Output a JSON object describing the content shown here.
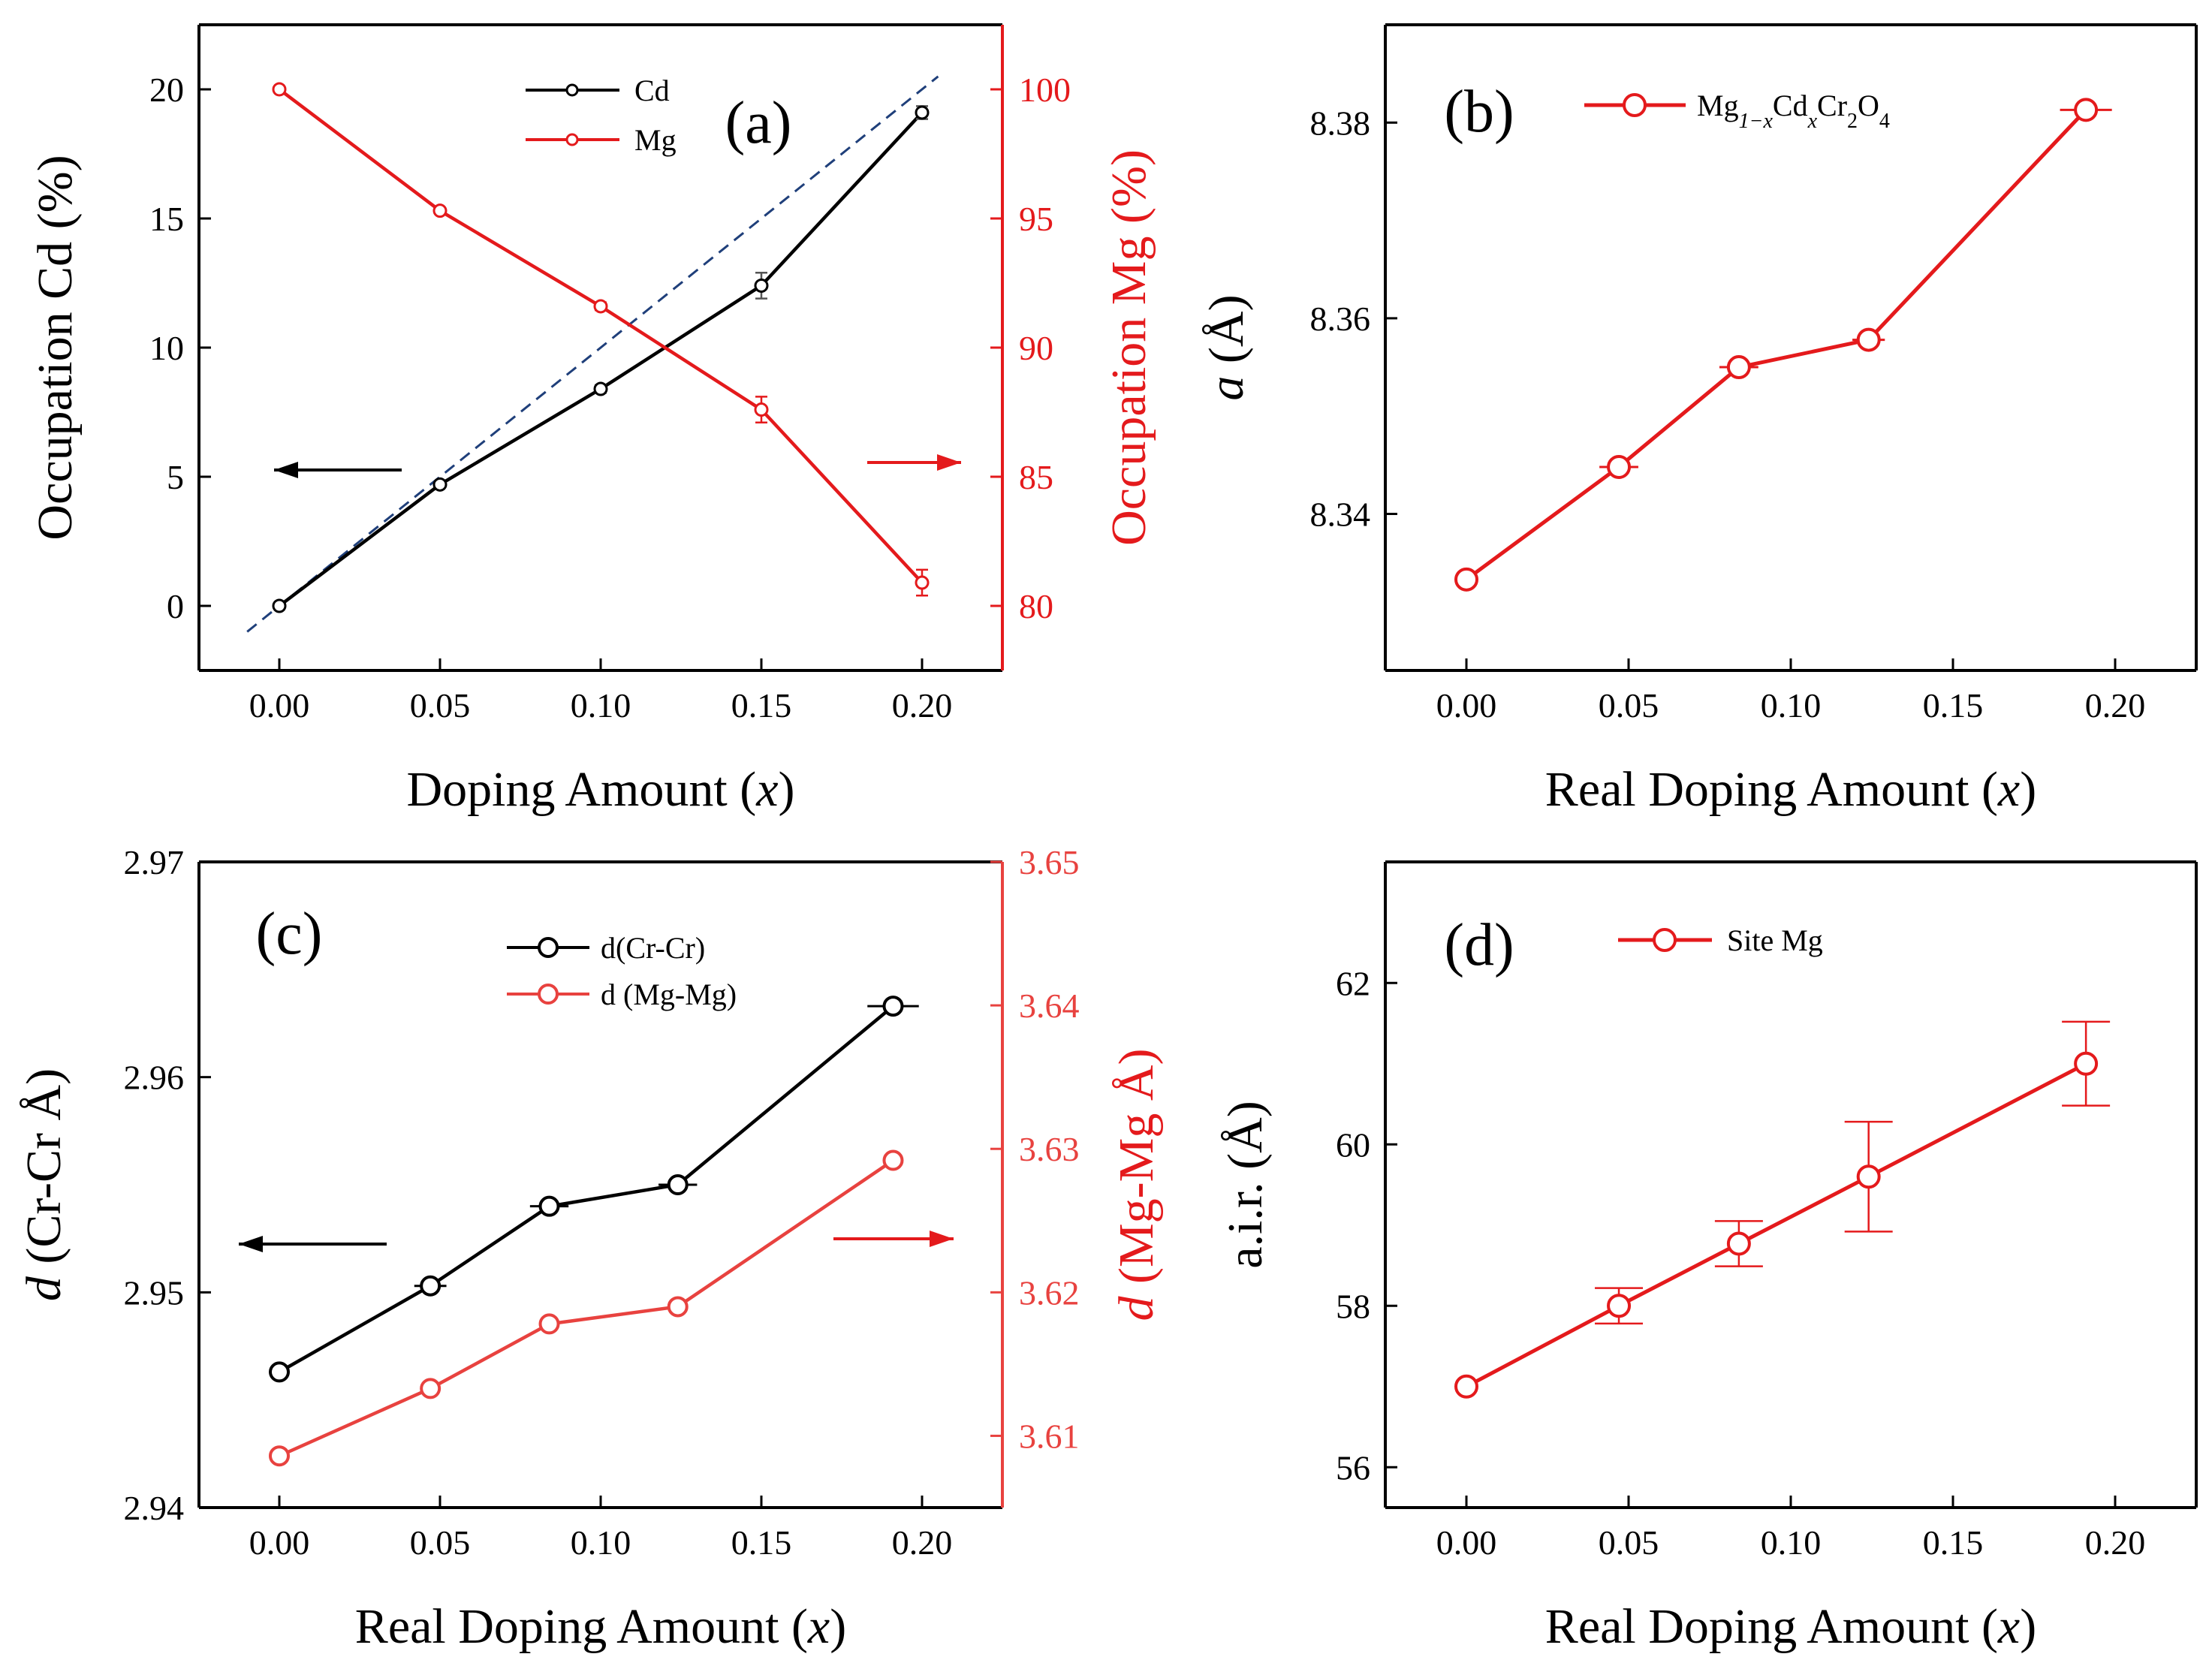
{
  "chart_data": [
    {
      "id": "a",
      "type": "line",
      "panel_label": "(a)",
      "xlabel": "Doping Amount (",
      "xlabel_var": "x",
      "xlabel_end": ")",
      "ylabel_left": "Occupation Cd (%)",
      "ylabel_right": "Occupation Mg (%)",
      "xlim": [
        -0.025,
        0.225
      ],
      "ylim_left": [
        -2.5,
        22.5
      ],
      "ylim_right": [
        77.5,
        102.5
      ],
      "x_ticks": [
        0.0,
        0.05,
        0.1,
        0.15,
        0.2
      ],
      "x_tick_labels": [
        "0.00",
        "0.05",
        "0.10",
        "0.15",
        "0.20"
      ],
      "y_left_ticks": [
        0,
        5,
        10,
        15,
        20
      ],
      "y_left_tick_labels": [
        "0",
        "5",
        "10",
        "15",
        "20"
      ],
      "y_right_ticks": [
        80,
        85,
        90,
        95,
        100
      ],
      "y_right_tick_labels": [
        "80",
        "85",
        "90",
        "95",
        "100"
      ],
      "reference_line": {
        "x": [
          -0.01,
          0.205
        ],
        "y": [
          -1.0,
          20.5
        ],
        "style": "dashed",
        "color": "#1f3f7a"
      },
      "series": [
        {
          "name": "Cd",
          "axis": "left",
          "color": "#000000",
          "marker": "circle-open",
          "x": [
            0.0,
            0.05,
            0.1,
            0.15,
            0.2
          ],
          "y": [
            0.0,
            4.7,
            8.4,
            12.4,
            19.1
          ],
          "yerr": [
            0.0,
            0.1,
            0.15,
            0.5,
            0.25
          ]
        },
        {
          "name": "Mg",
          "axis": "right",
          "color": "#e41a1c",
          "marker": "circle-open",
          "x": [
            0.0,
            0.05,
            0.1,
            0.15,
            0.2
          ],
          "y": [
            100.0,
            95.3,
            91.6,
            87.6,
            80.9
          ],
          "yerr": [
            0.0,
            0.1,
            0.15,
            0.5,
            0.5
          ]
        }
      ],
      "arrows": [
        {
          "direction": "left",
          "color": "#000000"
        },
        {
          "direction": "right",
          "color": "#e41a1c"
        }
      ]
    },
    {
      "id": "b",
      "type": "line",
      "panel_label": "(b)",
      "xlabel": "Real Doping Amount (",
      "xlabel_var": "x",
      "xlabel_end": ")",
      "ylabel_var": "a",
      "ylabel_rest": "(Å)",
      "xlim": [
        -0.025,
        0.225
      ],
      "ylim": [
        8.324,
        8.39
      ],
      "x_ticks": [
        0.0,
        0.05,
        0.1,
        0.15,
        0.2
      ],
      "x_tick_labels": [
        "0.00",
        "0.05",
        "0.10",
        "0.15",
        "0.20"
      ],
      "y_ticks": [
        8.34,
        8.36,
        8.38
      ],
      "y_tick_labels": [
        "8.34",
        "8.36",
        "8.38"
      ],
      "legend": {
        "label": "Mg",
        "sub1": "1−x",
        "mid1": "Cd",
        "sub2": "x",
        "mid2": "Cr",
        "sub3": "2",
        "mid3": "O",
        "sub4": "4"
      },
      "series": [
        {
          "name": "Mg1-xCdxCr2O4",
          "color": "#e41a1c",
          "marker": "circle-open",
          "x": [
            0.0,
            0.047,
            0.084,
            0.124,
            0.191
          ],
          "y": [
            8.3333,
            8.3448,
            8.355,
            8.3578,
            8.3813
          ],
          "xerr": [
            0.0,
            0.006,
            0.006,
            0.005,
            0.008
          ]
        }
      ]
    },
    {
      "id": "c",
      "type": "line",
      "panel_label": "(c)",
      "xlabel": "Real Doping Amount (",
      "xlabel_var": "x",
      "xlabel_end": ")",
      "ylabel_left_var": "d",
      "ylabel_left_rest": "(Cr-Cr Å)",
      "ylabel_right_var": "d",
      "ylabel_right_rest": "(Mg-Mg Å)",
      "xlim": [
        -0.025,
        0.225
      ],
      "ylim_left": [
        2.94,
        2.97
      ],
      "ylim_right": [
        3.605,
        3.65
      ],
      "x_ticks": [
        0.0,
        0.05,
        0.1,
        0.15,
        0.2
      ],
      "x_tick_labels": [
        "0.00",
        "0.05",
        "0.10",
        "0.15",
        "0.20"
      ],
      "y_left_ticks": [
        2.94,
        2.95,
        2.96,
        2.97
      ],
      "y_left_tick_labels": [
        "2.94",
        "2.95",
        "2.96",
        "2.97"
      ],
      "y_right_ticks": [
        3.61,
        3.62,
        3.63,
        3.64,
        3.65
      ],
      "y_right_tick_labels": [
        "3.61",
        "3.62",
        "3.63",
        "3.64",
        "3.65"
      ],
      "series": [
        {
          "name": "d(Cr-Cr)",
          "axis": "left",
          "color": "#000000",
          "marker": "circle-open",
          "x": [
            0.0,
            0.047,
            0.084,
            0.124,
            0.191
          ],
          "y": [
            2.9463,
            2.9503,
            2.954,
            2.955,
            2.9633
          ],
          "xerr": [
            0.0,
            0.005,
            0.006,
            0.006,
            0.008
          ]
        },
        {
          "name": "d (Mg-Mg)",
          "axis": "right",
          "color": "#e8423f",
          "marker": "circle-open",
          "x": [
            0.0,
            0.047,
            0.084,
            0.124,
            0.191
          ],
          "y": [
            3.6086,
            3.6133,
            3.6178,
            3.619,
            3.6292
          ],
          "xerr": [
            0.0,
            0.0,
            0.0,
            0.0,
            0.0
          ]
        }
      ],
      "arrows": [
        {
          "direction": "left",
          "color": "#000000"
        },
        {
          "direction": "right",
          "color": "#e41a1c"
        }
      ]
    },
    {
      "id": "d",
      "type": "line",
      "panel_label": "(d)",
      "xlabel": "Real Doping Amount (",
      "xlabel_var": "x",
      "xlabel_end": ")",
      "ylabel": "a.i.r. (Å)",
      "xlim": [
        -0.025,
        0.225
      ],
      "ylim": [
        55.5,
        63.5
      ],
      "x_ticks": [
        0.0,
        0.05,
        0.1,
        0.15,
        0.2
      ],
      "x_tick_labels": [
        "0.00",
        "0.05",
        "0.10",
        "0.15",
        "0.20"
      ],
      "y_ticks": [
        56,
        58,
        60,
        62
      ],
      "y_tick_labels": [
        "56",
        "58",
        "60",
        "62"
      ],
      "series": [
        {
          "name": "Site Mg",
          "color": "#e41a1c",
          "marker": "circle-open",
          "x": [
            0.0,
            0.047,
            0.084,
            0.124,
            0.191
          ],
          "y": [
            57.0,
            58.0,
            58.77,
            59.6,
            61.0
          ],
          "yerr": [
            0.0,
            0.22,
            0.28,
            0.68,
            0.52
          ]
        }
      ]
    }
  ]
}
